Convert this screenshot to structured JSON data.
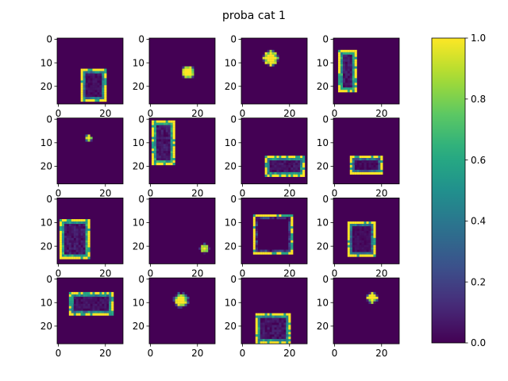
{
  "figure": {
    "title": "proba cat 1"
  },
  "chart_data": {
    "type": "heatmap",
    "title": "proba cat 1",
    "grid": false,
    "colormap": "viridis",
    "image_size": [
      28,
      28
    ],
    "x_ticks": [
      0,
      20
    ],
    "y_ticks": [
      0,
      10,
      20
    ],
    "colorbar": {
      "range": [
        0,
        1
      ],
      "ticks": [
        "0.0",
        "0.2",
        "0.4",
        "0.6",
        "0.8",
        "1.0"
      ]
    },
    "panels": [
      {
        "shape": "rect",
        "r0": 13,
        "c0": 10,
        "r1": 26,
        "c1": 20,
        "inner": 0.25
      },
      {
        "shape": "blob",
        "cr": 14,
        "cc": 16,
        "rad": 2.3
      },
      {
        "shape": "blob",
        "cr": 8,
        "cc": 12,
        "rad": 3.0
      },
      {
        "shape": "rect",
        "r0": 5,
        "c0": 2,
        "r1": 22,
        "c1": 9,
        "inner": 0.4
      },
      {
        "shape": "blob",
        "cr": 8,
        "cc": 13,
        "rad": 1.0
      },
      {
        "shape": "rect",
        "r0": 1,
        "c0": 1,
        "r1": 19,
        "c1": 10,
        "inner": 0.4
      },
      {
        "shape": "rect",
        "r0": 16,
        "c0": 10,
        "r1": 24,
        "c1": 26,
        "inner": 0.35
      },
      {
        "shape": "rect",
        "r0": 16,
        "c0": 7,
        "r1": 23,
        "c1": 20,
        "inner": 0.2
      },
      {
        "shape": "rect",
        "r0": 9,
        "c0": 1,
        "r1": 25,
        "c1": 13,
        "inner": 0.4
      },
      {
        "shape": "blob",
        "cr": 21,
        "cc": 23,
        "rad": 1.6
      },
      {
        "shape": "rect",
        "r0": 7,
        "c0": 5,
        "r1": 23,
        "c1": 21,
        "inner": 0.0
      },
      {
        "shape": "rect",
        "r0": 10,
        "c0": 6,
        "r1": 24,
        "c1": 17,
        "inner": 0.2
      },
      {
        "shape": "rect",
        "r0": 6,
        "c0": 5,
        "r1": 15,
        "c1": 23,
        "inner": 0.3
      },
      {
        "shape": "blob",
        "cr": 9,
        "cc": 13,
        "rad": 2.6
      },
      {
        "shape": "rect",
        "r0": 15,
        "c0": 6,
        "r1": 27,
        "c1": 20,
        "inner": 0.35
      },
      {
        "shape": "blob",
        "cr": 8,
        "cc": 16,
        "rad": 2.0
      }
    ]
  }
}
